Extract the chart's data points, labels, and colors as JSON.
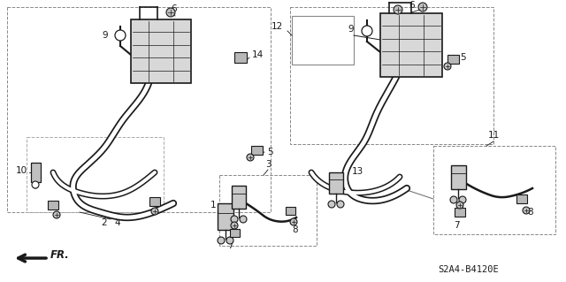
{
  "bg_color": "#ffffff",
  "lc": "#1a1a1a",
  "diagram_code": "S2A4-B4120E",
  "fig_w": 6.4,
  "fig_h": 3.19,
  "dpi": 100
}
